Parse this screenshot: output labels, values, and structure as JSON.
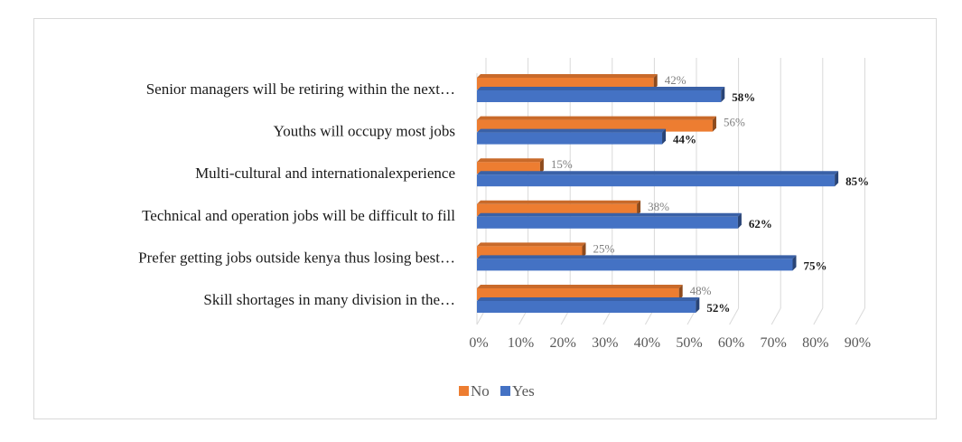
{
  "chart_data": {
    "type": "bar",
    "orientation": "horizontal",
    "categories": [
      "Senior managers will be retiring within the next…",
      "Youths will occupy most jobs",
      "Multi-cultural and internationalexperience",
      "Technical and operation jobs will be difficult to fill",
      "Prefer getting jobs outside kenya thus losing best…",
      "Skill shortages in many division in the…"
    ],
    "series": [
      {
        "name": "No",
        "color": "#ed7d31",
        "values": [
          42,
          56,
          15,
          38,
          25,
          48
        ],
        "labels": [
          "42%",
          "56%",
          "15%",
          "38%",
          "25%",
          "48%"
        ]
      },
      {
        "name": "Yes",
        "color": "#4472c4",
        "values": [
          58,
          44,
          85,
          62,
          75,
          52
        ],
        "labels": [
          "58%",
          "44%",
          "85%",
          "62%",
          "75%",
          "52%"
        ]
      }
    ],
    "xlim": [
      0,
      90
    ],
    "x_ticks": [
      "0%",
      "10%",
      "20%",
      "30%",
      "40%",
      "50%",
      "60%",
      "70%",
      "80%",
      "90%"
    ],
    "grid": true,
    "legend": "bottom-center",
    "style": "3d"
  }
}
